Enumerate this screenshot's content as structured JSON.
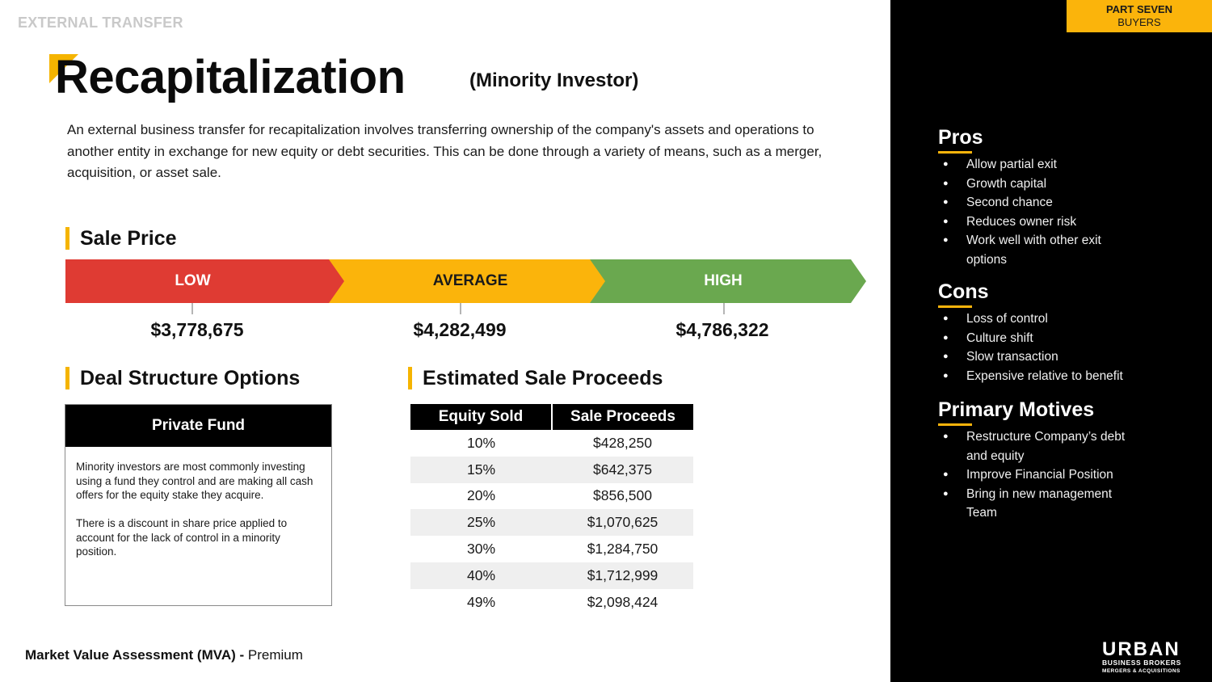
{
  "section_label": "EXTERNAL TRANSFER",
  "title": "Recapitalization",
  "subtitle": "(Minority Investor)",
  "intro": "An external business transfer for recapitalization involves transferring ownership of the company's assets and operations to another entity in exchange for new equity or debt securities. This can be done through a variety of means, such as a merger, acquisition, or asset sale.",
  "sale_price": {
    "heading": "Sale Price",
    "low": {
      "label": "LOW",
      "value": "$3,778,675"
    },
    "average": {
      "label": "AVERAGE",
      "value": "$4,282,499"
    },
    "high": {
      "label": "HIGH",
      "value": "$4,786,322"
    }
  },
  "deal_structure": {
    "heading": "Deal Structure Options",
    "box_title": "Private Fund",
    "paragraph1": "Minority investors are most commonly investing using a fund they control and are making all cash offers for the equity stake they acquire.",
    "paragraph2": "There is a discount in share price applied to account for the lack of control in a minority position."
  },
  "proceeds": {
    "heading": "Estimated Sale Proceeds",
    "col1": "Equity Sold",
    "col2": "Sale Proceeds",
    "rows": [
      {
        "equity": "10%",
        "proceeds": "$428,250"
      },
      {
        "equity": "15%",
        "proceeds": "$642,375"
      },
      {
        "equity": "20%",
        "proceeds": "$856,500"
      },
      {
        "equity": "25%",
        "proceeds": "$1,070,625"
      },
      {
        "equity": "30%",
        "proceeds": "$1,284,750"
      },
      {
        "equity": "40%",
        "proceeds": "$1,712,999"
      },
      {
        "equity": "49%",
        "proceeds": "$2,098,424"
      }
    ]
  },
  "footer": {
    "bold": "Market Value Assessment (MVA) -",
    "normal": "Premium"
  },
  "part_tag": {
    "line1": "PART SEVEN",
    "line2": "BUYERS"
  },
  "pros": {
    "heading": "Pros",
    "items": [
      "Allow partial exit",
      "Growth capital",
      "Second chance",
      "Reduces owner risk",
      "Work well with other exit options"
    ]
  },
  "cons": {
    "heading": "Cons",
    "items": [
      "Loss of control",
      "Culture shift",
      "Slow transaction",
      "Expensive relative to benefit"
    ]
  },
  "motives": {
    "heading": "Primary Motives",
    "items": [
      "Restructure Company’s debt and equity",
      "Improve Financial Position",
      "Bring in new management Team"
    ]
  },
  "logo": {
    "main": "URBAN",
    "sub1": "BUSINESS BROKERS",
    "sub2": "MERGERS & ACQUISITIONS"
  },
  "colors": {
    "accent": "#fbb40b",
    "low": "#df3b33",
    "average": "#fbb40b",
    "high": "#6aa84f"
  }
}
